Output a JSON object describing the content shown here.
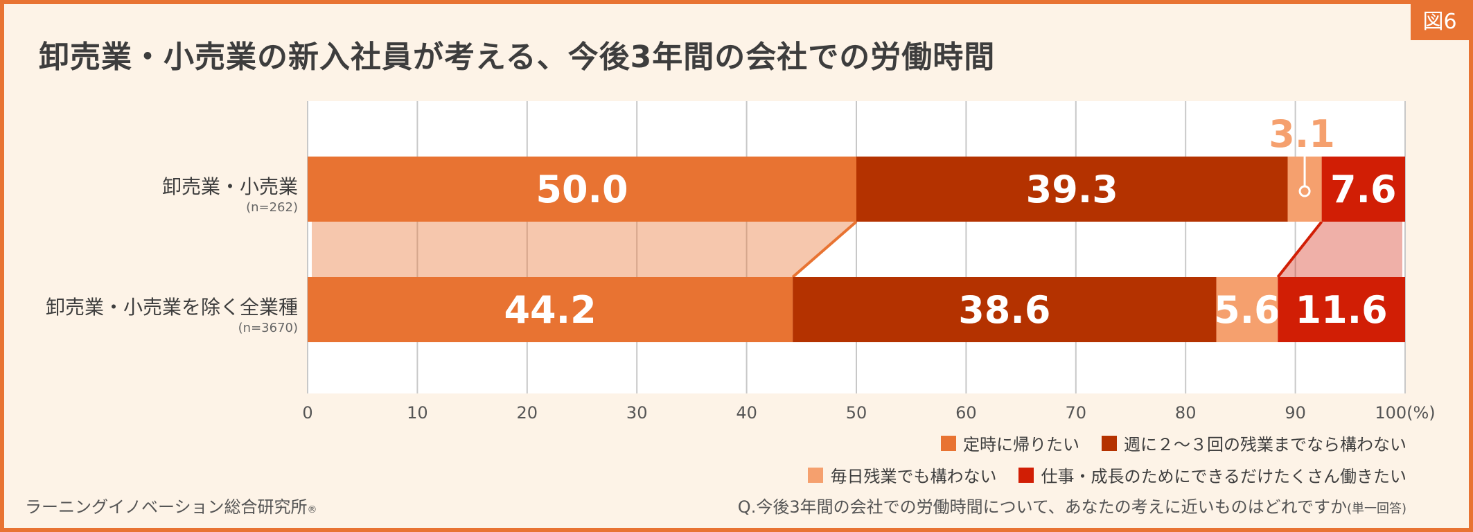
{
  "figure_tag": "図6",
  "title": "卸売業・小売業の新入社員が考える、今後3年間の会社での労働時間",
  "colors": {
    "teiji": "#e87332",
    "shu23": "#b43200",
    "mainichi": "#f5a06e",
    "dekiru": "#d11e05",
    "bg": "#fdf3e7",
    "plot_bg": "#ffffff"
  },
  "chart_data": {
    "type": "bar",
    "orientation": "horizontal-stacked",
    "xlim": [
      0,
      100
    ],
    "xticks": [
      "0",
      "10",
      "20",
      "30",
      "40",
      "50",
      "60",
      "70",
      "80",
      "90",
      "100(%)"
    ],
    "grid": true,
    "categories": [
      {
        "label": "卸売業・小売業",
        "n": "(n=262)"
      },
      {
        "label": "卸売業・小売業を除く全業種",
        "n": "(n=3670)"
      }
    ],
    "series": [
      {
        "name": "定時に帰りたい",
        "color": "#e87332",
        "values": [
          50.0,
          44.2
        ],
        "labels": [
          "50.0",
          "44.2"
        ]
      },
      {
        "name": "週に２～３回の残業までなら構わない",
        "color": "#b43200",
        "values": [
          39.3,
          38.6
        ],
        "labels": [
          "39.3",
          "38.6"
        ]
      },
      {
        "name": "毎日残業でも構わない",
        "color": "#f5a06e",
        "values": [
          3.1,
          5.6
        ],
        "labels": [
          "3.1",
          "5.6"
        ]
      },
      {
        "name": "仕事・成長のためにできるだけたくさん働きたい",
        "color": "#d11e05",
        "values": [
          7.6,
          11.6
        ],
        "labels": [
          "7.6",
          "11.6"
        ]
      }
    ]
  },
  "legend": {
    "row1": [
      "定時に帰りたい",
      "週に２～３回の残業までなら構わない"
    ],
    "row2": [
      "毎日残業でも構わない",
      "仕事・成長のためにできるだけたくさん働きたい"
    ]
  },
  "footer": {
    "source": "ラーニングイノベーション総合研究所",
    "source_mark": "®",
    "question": "Q.今後3年間の会社での労働時間について、あなたの考えに近いものはどれですか",
    "question_note": "(単一回答)"
  }
}
